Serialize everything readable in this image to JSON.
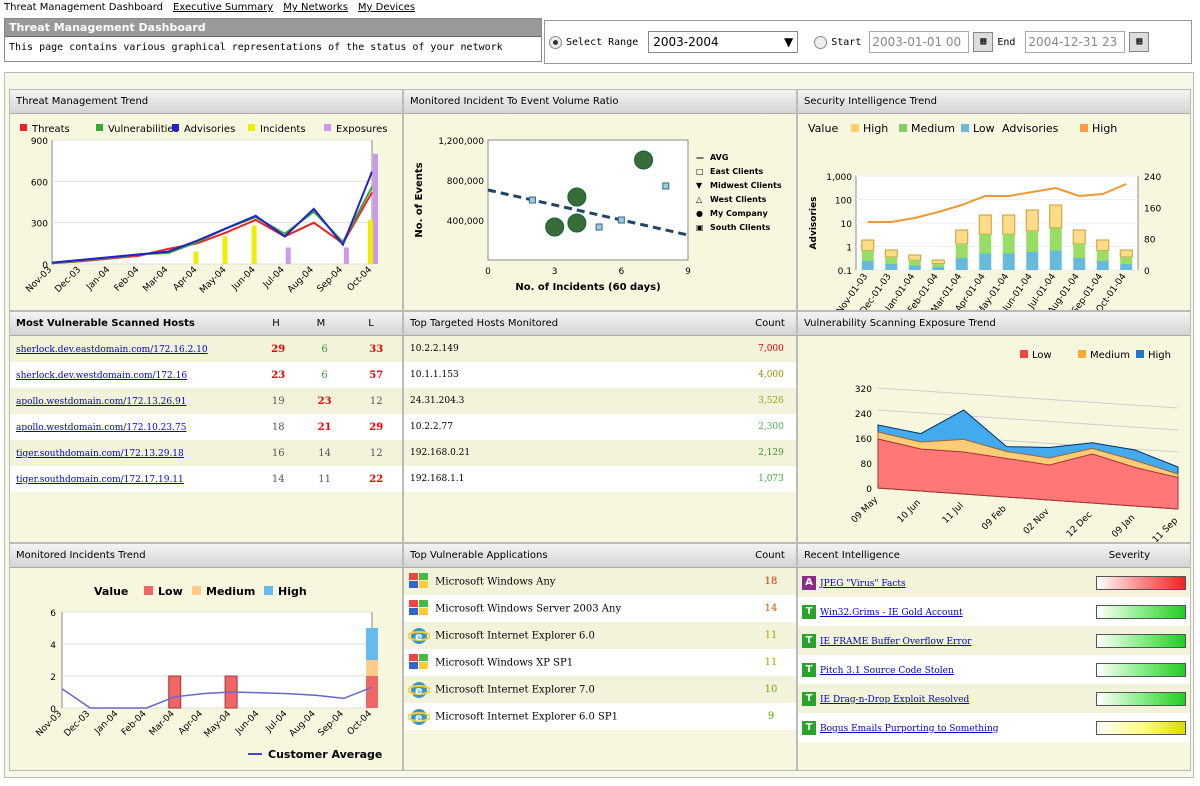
{
  "nav": {
    "title": "Threat Management Dashboard",
    "links": [
      "Executive Summary",
      "My Networks",
      "My Devices"
    ]
  },
  "header": {
    "title": "Threat Management Dashboard",
    "description": "This page contains various graphical representations of the status of your network"
  },
  "range": {
    "select_label": "Select Range",
    "selected": "2003-2004",
    "start_label": "Start",
    "start_value": "2003-01-01 00",
    "end_label": "End",
    "end_value": "2004-12-31 23"
  },
  "panels": {
    "threat_trend": {
      "title": "Threat Management Trend"
    },
    "ratio": {
      "title": "Monitored Incident To Event Volume Ratio"
    },
    "sec_intel": {
      "title": "Security Intelligence Trend"
    },
    "vuln_hosts": {
      "title": "Most Vulnerable Scanned Hosts",
      "col_h": "H",
      "col_m": "M",
      "col_l": "L",
      "rows": [
        {
          "host": "sherlock.dev.eastdomain.com/172.16.2.10",
          "h": "29",
          "m": "6",
          "l": "33"
        },
        {
          "host": "sherlock.dev.westdomain.com/172.16",
          "h": "23",
          "m": "6",
          "l": "57"
        },
        {
          "host": "apollo.westdomain.com/172.13.26.91",
          "h": "19",
          "m": "23",
          "l": "12"
        },
        {
          "host": "apollo.westdomain.com/172.10.23.75",
          "h": "18",
          "m": "21",
          "l": "29"
        },
        {
          "host": "tiger.southdomain.com/172.13.29.18",
          "h": "16",
          "m": "14",
          "l": "12"
        },
        {
          "host": "tiger.southdomain.com/172.17.19.11",
          "h": "14",
          "m": "11",
          "l": "22"
        }
      ]
    },
    "targeted": {
      "title": "Top Targeted Hosts Monitored",
      "col": "Count",
      "rows": [
        {
          "ip": "10.2.2.149",
          "count": "7,000"
        },
        {
          "ip": "10.1.1.153",
          "count": "4,000"
        },
        {
          "ip": "24.31.204.3",
          "count": "3,526"
        },
        {
          "ip": "10.2.2.77",
          "count": "2,300"
        },
        {
          "ip": "192.168.0.21",
          "count": "2,129"
        },
        {
          "ip": "192.168.1.1",
          "count": "1,073"
        }
      ]
    },
    "exposure": {
      "title": "Vulnerability Scanning Exposure Trend"
    },
    "incidents": {
      "title": "Monitored Incidents Trend"
    },
    "apps": {
      "title": "Top Vulnerable Applications",
      "col": "Count",
      "rows": [
        {
          "name": "Microsoft Windows Any",
          "count": "18",
          "icon": "windows-icon"
        },
        {
          "name": "Microsoft Windows Server 2003 Any",
          "count": "14",
          "icon": "windows-icon"
        },
        {
          "name": "Microsoft Internet Explorer 6.0",
          "count": "11",
          "icon": "ie-icon"
        },
        {
          "name": "Microsoft Windows XP SP1",
          "count": "11",
          "icon": "windows-icon"
        },
        {
          "name": "Microsoft Internet Explorer 7.0",
          "count": "10",
          "icon": "ie-icon"
        },
        {
          "name": "Microsoft Internet Explorer 6.0 SP1",
          "count": "9",
          "icon": "ie-icon"
        }
      ]
    },
    "intel": {
      "title": "Recent Intelligence",
      "col": "Severity",
      "rows": [
        {
          "badge": "A",
          "title": "JPEG \"Virus\" Facts",
          "sev": "red"
        },
        {
          "badge": "T",
          "title": "Win32.Grims - IE Gold Account",
          "sev": "green"
        },
        {
          "badge": "T",
          "title": "IE FRAME Buffer Overflow Error",
          "sev": "green"
        },
        {
          "badge": "T",
          "title": "Pitch 3.1 Source Code Stolen",
          "sev": "green"
        },
        {
          "badge": "T",
          "title": "IE Drag-n-Drop Exploit Resolved",
          "sev": "green"
        },
        {
          "badge": "T",
          "title": "Bogus Emails Purporting to Something",
          "sev": "yellow"
        }
      ]
    }
  },
  "colors": {
    "low": "#e04050",
    "medium": "#f0b040",
    "high": "#3090d0",
    "green_sev": "#20c020"
  },
  "chart_data": [
    {
      "id": "threat_trend",
      "type": "line",
      "categories": [
        "Nov-03",
        "Dec-03",
        "Jan-04",
        "Feb-04",
        "Mar-04",
        "Apr-04",
        "May-04",
        "Jun-04",
        "Jul-04",
        "Aug-04",
        "Sep-04",
        "Oct-04"
      ],
      "ylim": [
        0,
        900
      ],
      "yticks": [
        "900",
        "600",
        "300",
        "0"
      ],
      "legend": [
        "Threats",
        "Vulnerabilities",
        "Advisories",
        "Incidents",
        "Exposures"
      ],
      "series": [
        {
          "name": "Threats",
          "values": [
            5,
            20,
            40,
            60,
            110,
            150,
            230,
            320,
            200,
            300,
            150,
            520
          ]
        },
        {
          "name": "Vulnerabilities",
          "values": [
            5,
            25,
            45,
            70,
            80,
            160,
            260,
            340,
            220,
            380,
            160,
            560
          ]
        },
        {
          "name": "Advisories",
          "values": [
            10,
            30,
            50,
            70,
            90,
            170,
            260,
            350,
            200,
            400,
            140,
            670
          ]
        },
        {
          "name": "Incidents",
          "values": [
            0,
            0,
            0,
            0,
            0,
            90,
            200,
            280,
            0,
            0,
            0,
            320
          ]
        },
        {
          "name": "Exposures",
          "values": [
            0,
            0,
            0,
            0,
            0,
            0,
            0,
            0,
            120,
            0,
            120,
            800
          ]
        }
      ]
    },
    {
      "id": "ratio",
      "type": "scatter",
      "xlabel": "No. of Incidents (60 days)",
      "ylabel": "No. of Events",
      "xlim": [
        0,
        9
      ],
      "ylim": [
        0,
        1200000
      ],
      "yticks": [
        "1,200,000",
        "800,000",
        "400,000"
      ],
      "xticks": [
        "0",
        "3",
        "6",
        "9"
      ],
      "legend": [
        "AVG",
        "East Clients",
        "Midwest Clients",
        "West Clients",
        "My Company",
        "South Clients"
      ],
      "points": [
        {
          "x": 3,
          "y": 330000
        },
        {
          "x": 4,
          "y": 370000
        },
        {
          "x": 4,
          "y": 630000
        },
        {
          "x": 7,
          "y": 1000000
        }
      ],
      "small": [
        {
          "x": 2,
          "y": 600000
        },
        {
          "x": 5,
          "y": 330000
        },
        {
          "x": 6,
          "y": 400000
        },
        {
          "x": 8,
          "y": 740000
        }
      ]
    },
    {
      "id": "sec_intel",
      "type": "bar",
      "categories": [
        "Nov-01-03",
        "Dec-01-03",
        "Jan-01-04",
        "Feb-01-04",
        "Mar-01-04",
        "Apr-01-04",
        "May-01-04",
        "Jun-01-04",
        "Jul-01-04",
        "Aug-01-04",
        "Sep-01-04",
        "Oct-01-04"
      ],
      "legend": [
        "Value",
        "High",
        "Medium",
        "Low",
        "Advisories",
        "High"
      ],
      "yticks_left": [
        "1,000",
        "100",
        "10",
        "1",
        "0.1"
      ],
      "yticks_right": [
        "240",
        "160",
        "80",
        "0"
      ],
      "ylabel": "Advisories"
    },
    {
      "id": "exposure",
      "type": "area",
      "categories": [
        "09 May",
        "10 Jun",
        "11 Jul",
        "09 Feb",
        "02 Nov",
        "12 Dec",
        "09 Jan",
        "11 Sep"
      ],
      "legend": [
        "Low",
        "Medium",
        "High"
      ],
      "yticks": [
        "320",
        "240",
        "160",
        "80",
        "0"
      ]
    },
    {
      "id": "incidents",
      "type": "bar",
      "categories": [
        "Nov-03",
        "Dec-03",
        "Jan-04",
        "Feb-04",
        "Mar-04",
        "Apr-04",
        "May-04",
        "Jun-04",
        "Jul-04",
        "Aug-04",
        "Sep-04",
        "Oct-04"
      ],
      "legend": [
        "Value",
        "Low",
        "Medium",
        "High"
      ],
      "footer": "Customer Average",
      "yticks": [
        "6",
        "4",
        "2",
        "0"
      ]
    }
  ]
}
